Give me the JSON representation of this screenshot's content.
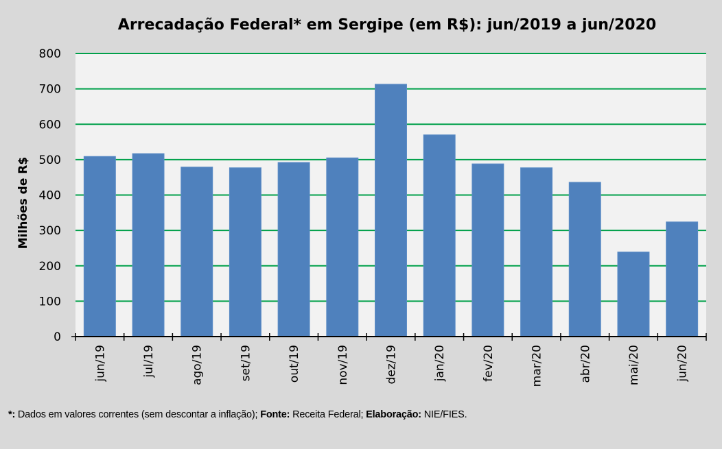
{
  "chart_data": {
    "type": "bar",
    "title": "Arrecadação Federal* em Sergipe (em R$): jun/2019 a jun/2020",
    "xlabel": "",
    "ylabel": "Milhões de R$",
    "ylim": [
      0,
      800
    ],
    "yticks": [
      0,
      100,
      200,
      300,
      400,
      500,
      600,
      700,
      800
    ],
    "grid": true,
    "legend": "none",
    "categories": [
      "jun/19",
      "jul/19",
      "ago/19",
      "set/19",
      "out/19",
      "nov/19",
      "dez/19",
      "jan/20",
      "fev/20",
      "mar/20",
      "abr/20",
      "mai/20",
      "jun/20"
    ],
    "values": [
      509,
      517,
      479,
      477,
      492,
      505,
      713,
      570,
      488,
      477,
      436,
      239,
      324
    ],
    "colors": {
      "bar": "#4f81bd",
      "grid": "#00a04a",
      "plot_bg": "#f2f2f2",
      "page_bg": "#d9d9d9"
    }
  },
  "footnote": {
    "marker": "*:",
    "text1": " Dados em valores correntes (sem descontar a inflação); ",
    "source_label": "Fonte:",
    "source": " Receita  Federal; ",
    "credit_label": "Elaboração:",
    "credit": " NIE/FIES."
  }
}
